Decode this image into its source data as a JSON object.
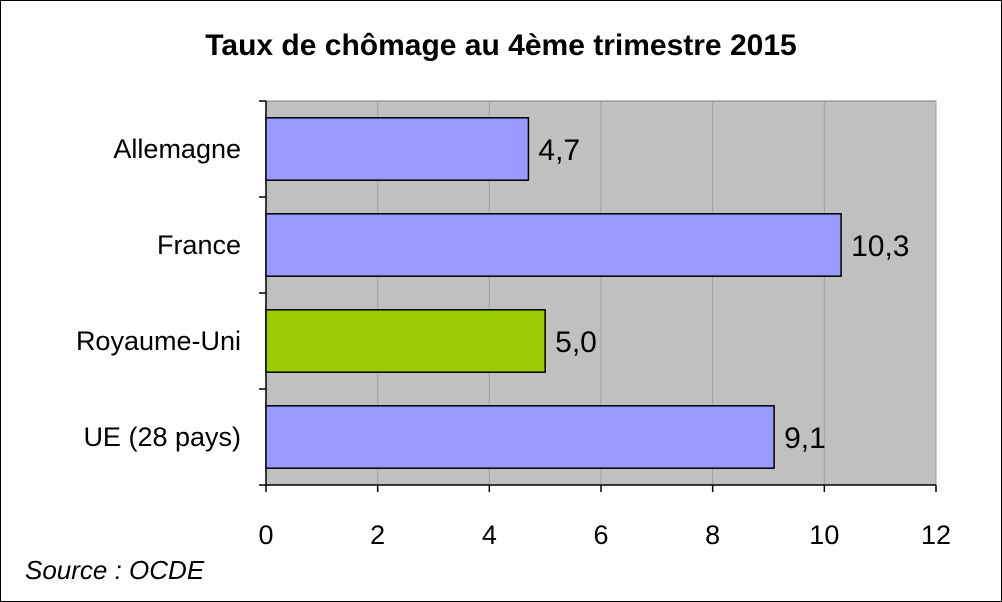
{
  "chart_data": {
    "type": "bar",
    "orientation": "horizontal",
    "title": "Taux de chômage au 4ème trimestre 2015",
    "source": "Source : OCDE",
    "categories": [
      "Allemagne",
      "France",
      "Royaume-Uni",
      "UE (28 pays)"
    ],
    "values": [
      4.7,
      10.3,
      5.0,
      9.1
    ],
    "value_labels": [
      "4,7",
      "10,3",
      "5,0",
      "9,1"
    ],
    "xlim": [
      0,
      12
    ],
    "xticks": [
      0,
      2,
      4,
      6,
      8,
      10,
      12
    ],
    "bar_colors": [
      "#9999ff",
      "#9999ff",
      "#99cc00",
      "#9999ff"
    ],
    "plot_background": "#c0c0c0",
    "grid": true,
    "legend": "none"
  }
}
